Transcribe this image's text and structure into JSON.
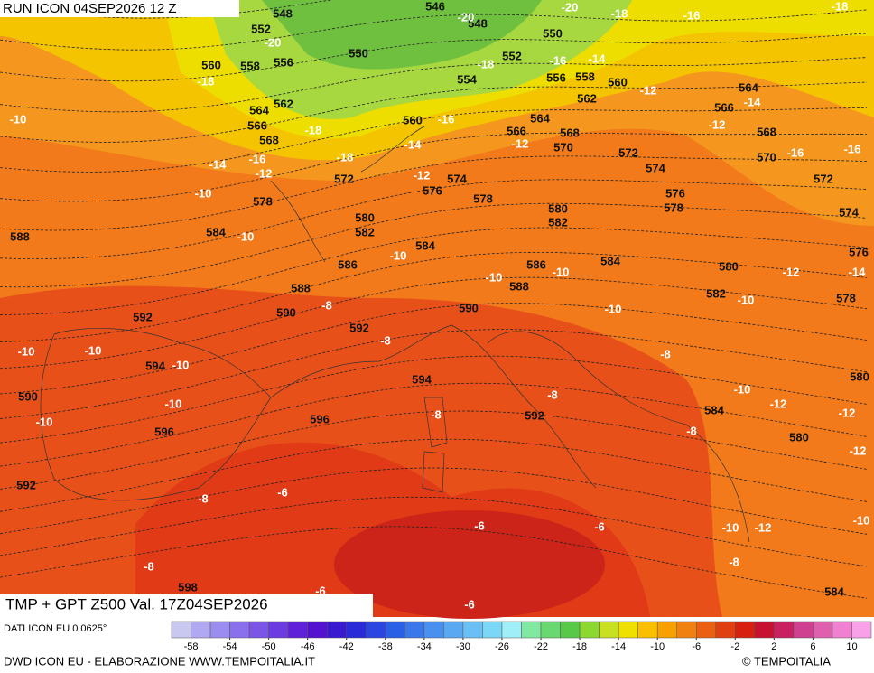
{
  "header": {
    "title": "RUN ICON 04SEP2026 12 Z"
  },
  "map": {
    "geopotential_labels": [
      548,
      546,
      552,
      548,
      550,
      550,
      552,
      560,
      558,
      556,
      554,
      556,
      558,
      560,
      562,
      564,
      562,
      564,
      566,
      560,
      564,
      566,
      568,
      570,
      566,
      568,
      568,
      572,
      570,
      574,
      572,
      574,
      576,
      572,
      578,
      578,
      576,
      578,
      580,
      582,
      580,
      582,
      584,
      574,
      588,
      584,
      576,
      586,
      586,
      584,
      580,
      588,
      588,
      582,
      578,
      592,
      590,
      590,
      592,
      594,
      594,
      590,
      580,
      584,
      596,
      592,
      596,
      580,
      592,
      584,
      598
    ],
    "temperature_labels": [
      -18,
      -20,
      -20,
      -18,
      -16,
      -20,
      -18,
      -16,
      -14,
      -18,
      -12,
      -14,
      -10,
      -16,
      -18,
      -12,
      -14,
      -12,
      -16,
      -16,
      -16,
      -18,
      -14,
      -12,
      -12,
      -10,
      -10,
      -10,
      -10,
      -10,
      -12,
      -14,
      -8,
      -10,
      -10,
      -8,
      -10,
      -10,
      -10,
      -8,
      -10,
      -12,
      -12,
      -8,
      -10,
      -10,
      -8,
      -8,
      -12,
      -8,
      -6,
      -6,
      -6,
      -10,
      -12,
      -10,
      -8,
      -8,
      -6,
      -6
    ]
  },
  "caption": "TMP + GPT Z500 Val. 17Z04SEP2026",
  "legend": {
    "source": "DATI ICON EU 0.0625°",
    "colors": [
      "#c8c8f0",
      "#b0a8f0",
      "#9b8cf0",
      "#8a70ec",
      "#7a55e6",
      "#6c3ce0",
      "#5f22d8",
      "#5412d0",
      "#3a1ad0",
      "#2a2ad8",
      "#2a45e0",
      "#2a60e6",
      "#3a78ea",
      "#4a90ee",
      "#5aa8f2",
      "#6ac0f4",
      "#7ad8f6",
      "#a0eef8",
      "#80e8a0",
      "#6ad870",
      "#58c848",
      "#8cd830",
      "#c8e020",
      "#f0e000",
      "#f8c000",
      "#f8a000",
      "#f08010",
      "#e86010",
      "#e04010",
      "#d82010",
      "#c81030",
      "#c82060",
      "#d04090",
      "#e060b0",
      "#f080d0",
      "#f8a0e8"
    ],
    "ticks": [
      -58,
      -54,
      -50,
      -46,
      -42,
      -38,
      -34,
      -30,
      -26,
      -22,
      -18,
      -14,
      -10,
      -6,
      -2,
      2,
      6,
      10
    ]
  },
  "footer": {
    "credit": "DWD ICON EU - ELABORAZIONE WWW.TEMPOITALIA.IT",
    "copyright": "© TEMPOITALIA"
  }
}
